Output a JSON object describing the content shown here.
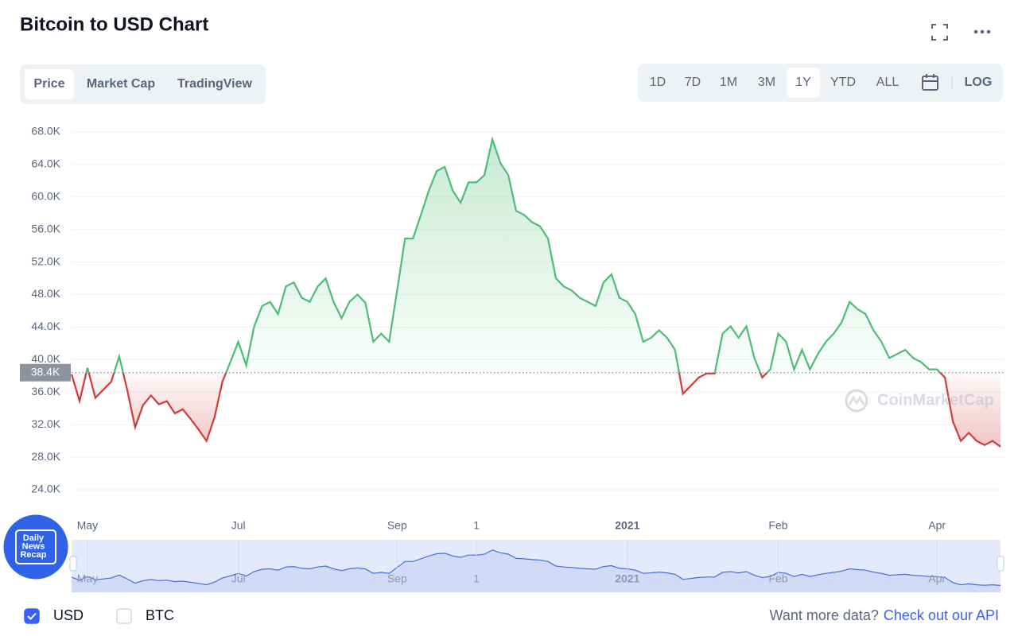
{
  "header": {
    "title": "Bitcoin to USD Chart"
  },
  "tabs": [
    "Price",
    "Market Cap",
    "TradingView"
  ],
  "active_tab": 0,
  "ranges": [
    "1D",
    "7D",
    "1M",
    "3M",
    "1Y",
    "YTD",
    "ALL"
  ],
  "active_range": 4,
  "log_label": "LOG",
  "chart_data": {
    "type": "line",
    "categories": [
      null,
      null,
      "May",
      null,
      null,
      null,
      null,
      null,
      null,
      null,
      null,
      null,
      null,
      null,
      null,
      null,
      null,
      null,
      null,
      null,
      null,
      "Jul",
      null,
      null,
      null,
      null,
      null,
      null,
      null,
      null,
      null,
      null,
      null,
      null,
      null,
      null,
      null,
      null,
      null,
      null,
      null,
      "Sep",
      null,
      null,
      null,
      null,
      null,
      null,
      null,
      null,
      null,
      "1",
      null,
      null,
      null,
      null,
      null,
      null,
      null,
      null,
      null,
      null,
      null,
      null,
      null,
      null,
      null,
      null,
      null,
      null,
      "2021",
      null,
      null,
      null,
      null,
      null,
      null,
      null,
      null,
      null,
      null,
      null,
      null,
      null,
      null,
      null,
      null,
      null,
      null,
      "Feb",
      null,
      null,
      null,
      null,
      null,
      null,
      null,
      null,
      null,
      null,
      null,
      null,
      null,
      null,
      null,
      null,
      null,
      null,
      null,
      "Apr",
      null,
      null,
      null,
      null,
      null,
      null,
      null,
      null
    ],
    "values": [
      38200,
      34900,
      39000,
      35300,
      36300,
      37300,
      40400,
      36300,
      31700,
      34400,
      35600,
      34500,
      34900,
      33400,
      33900,
      32700,
      31400,
      30000,
      32900,
      37300,
      39700,
      42200,
      39300,
      44100,
      46600,
      47100,
      45600,
      49000,
      49500,
      47600,
      47100,
      49000,
      50000,
      47100,
      45100,
      47100,
      48000,
      47000,
      42200,
      43200,
      42200,
      48500,
      54900,
      54900,
      57800,
      60800,
      63200,
      63700,
      60800,
      59300,
      61800,
      61800,
      62700,
      67100,
      64200,
      62700,
      58300,
      57800,
      56900,
      56400,
      54900,
      50000,
      49000,
      48500,
      47600,
      47100,
      46600,
      49500,
      50500,
      47600,
      47100,
      45600,
      42200,
      42700,
      43600,
      42700,
      41200,
      35800,
      36800,
      37800,
      38300,
      38300,
      43200,
      44100,
      42700,
      44100,
      40200,
      37800,
      38800,
      43200,
      42200,
      38800,
      41200,
      38800,
      40700,
      42200,
      43200,
      44600,
      47100,
      46200,
      45600,
      43600,
      42200,
      40200,
      40700,
      41200,
      40200,
      39700,
      38800,
      38800,
      37800,
      32400,
      30000,
      31000,
      30000,
      29500,
      30000,
      29300
    ],
    "ylim": [
      22000,
      70000
    ],
    "yticks": [
      {
        "value": 24000,
        "label": "24.0K"
      },
      {
        "value": 28000,
        "label": "28.0K"
      },
      {
        "value": 32000,
        "label": "32.0K"
      },
      {
        "value": 36000,
        "label": "36.0K"
      },
      {
        "value": 40000,
        "label": "40.0K"
      },
      {
        "value": 44000,
        "label": "44.0K"
      },
      {
        "value": 48000,
        "label": "48.0K"
      },
      {
        "value": 52000,
        "label": "52.0K"
      },
      {
        "value": 56000,
        "label": "56.0K"
      },
      {
        "value": 60000,
        "label": "60.0K"
      },
      {
        "value": 64000,
        "label": "64.0K"
      },
      {
        "value": 68000,
        "label": "68.0K"
      }
    ],
    "grid": true,
    "reference": {
      "value": 38400,
      "label": "38.4K"
    },
    "up_color": "#4cbd74",
    "down_color": "#d13b3b",
    "navigator_color": "#4a6ed8",
    "watermark": "CoinMarketCap"
  },
  "badge": {
    "lines": [
      "Daily",
      "News",
      "Recap"
    ]
  },
  "footer": {
    "currencies": [
      {
        "label": "USD",
        "checked": true
      },
      {
        "label": "BTC",
        "checked": false
      }
    ],
    "prompt": "Want more data?",
    "link": "Check out our API"
  }
}
